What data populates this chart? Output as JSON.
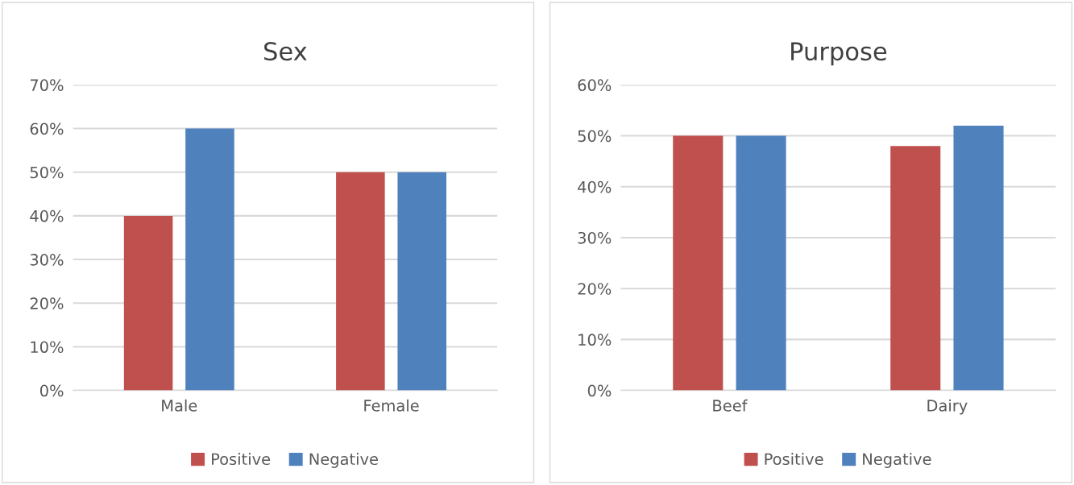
{
  "chart_data": [
    {
      "type": "bar",
      "title": "Sex",
      "categories": [
        "Male",
        "Female"
      ],
      "series": [
        {
          "name": "Positive",
          "color": "#c0504d",
          "values": [
            40,
            50
          ]
        },
        {
          "name": "Negative",
          "color": "#4f81bd",
          "values": [
            60,
            50
          ]
        }
      ],
      "ylim": [
        0,
        70
      ],
      "yticks": [
        {
          "value": 0,
          "label": "0%"
        },
        {
          "value": 10,
          "label": "10%"
        },
        {
          "value": 20,
          "label": "20%"
        },
        {
          "value": 30,
          "label": "30%"
        },
        {
          "value": 40,
          "label": "40%"
        },
        {
          "value": 50,
          "label": "50%"
        },
        {
          "value": 60,
          "label": "60%"
        },
        {
          "value": 70,
          "label": "70%"
        }
      ],
      "grid": "y",
      "legend": "bottom"
    },
    {
      "type": "bar",
      "title": "Purpose",
      "categories": [
        "Beef",
        "Dairy"
      ],
      "series": [
        {
          "name": "Positive",
          "color": "#c0504d",
          "values": [
            50,
            48
          ]
        },
        {
          "name": "Negative",
          "color": "#4f81bd",
          "values": [
            50,
            52
          ]
        }
      ],
      "ylim": [
        0,
        60
      ],
      "yticks": [
        {
          "value": 0,
          "label": "0%"
        },
        {
          "value": 10,
          "label": "10%"
        },
        {
          "value": 20,
          "label": "20%"
        },
        {
          "value": 30,
          "label": "30%"
        },
        {
          "value": 40,
          "label": "40%"
        },
        {
          "value": 50,
          "label": "50%"
        },
        {
          "value": 60,
          "label": "60%"
        }
      ],
      "grid": "y",
      "legend": "bottom"
    }
  ]
}
